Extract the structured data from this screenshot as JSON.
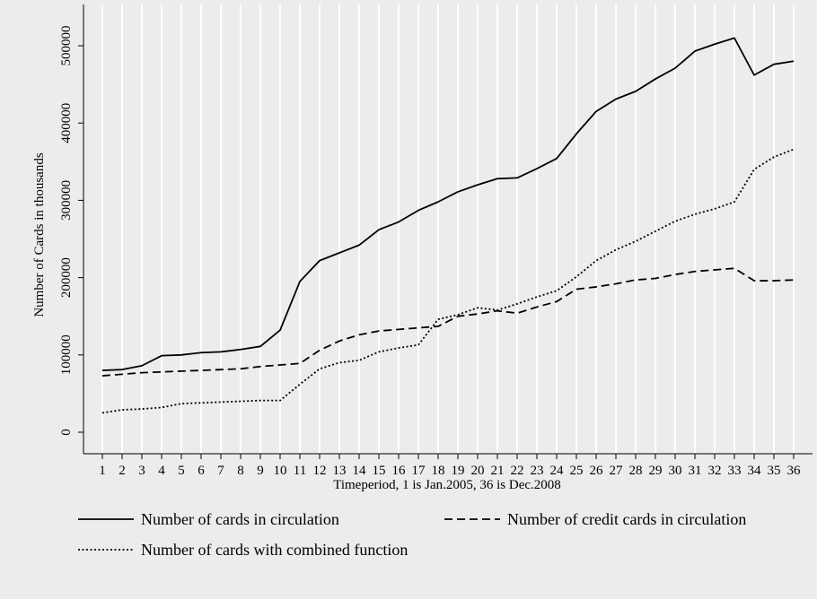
{
  "chart_data": {
    "type": "line",
    "xlabel": "Timeperiod, 1 is Jan.2005, 36 is Dec.2008",
    "ylabel": "Number of Cards in thousands",
    "x": [
      1,
      2,
      3,
      4,
      5,
      6,
      7,
      8,
      9,
      10,
      11,
      12,
      13,
      14,
      15,
      16,
      17,
      18,
      19,
      20,
      21,
      22,
      23,
      24,
      25,
      26,
      27,
      28,
      29,
      30,
      31,
      32,
      33,
      34,
      35,
      36
    ],
    "xticks": [
      "1",
      "2",
      "3",
      "4",
      "5",
      "6",
      "7",
      "8",
      "9",
      "10",
      "11",
      "12",
      "13",
      "14",
      "15",
      "16",
      "17",
      "18",
      "19",
      "20",
      "21",
      "22",
      "23",
      "24",
      "25",
      "26",
      "27",
      "28",
      "29",
      "30",
      "31",
      "32",
      "33",
      "34",
      "35",
      "36"
    ],
    "yticks": [
      "0",
      "100000",
      "200000",
      "300000",
      "400000",
      "500000"
    ],
    "xlim": [
      1,
      36
    ],
    "ylim": [
      0,
      500000
    ],
    "grid": "vertical",
    "legend_position": "bottom",
    "series": [
      {
        "name": "Number of cards in circulation",
        "style": "solid",
        "values": [
          80000,
          81000,
          86000,
          99000,
          100000,
          103000,
          104000,
          107000,
          111000,
          132000,
          195000,
          222000,
          232000,
          242000,
          262000,
          272000,
          287000,
          298000,
          311000,
          320000,
          328000,
          329000,
          341000,
          354000,
          386000,
          415000,
          431000,
          441000,
          457000,
          471000,
          493000,
          502000,
          510000,
          462000,
          476000,
          480000
        ]
      },
      {
        "name": "Number of credit cards in circulation",
        "style": "dashed",
        "values": [
          73000,
          75000,
          77000,
          78000,
          79000,
          80000,
          81000,
          82000,
          85000,
          87000,
          89000,
          106000,
          118000,
          126000,
          131000,
          133000,
          135000,
          137000,
          150000,
          153000,
          157000,
          154000,
          162000,
          169000,
          185000,
          188000,
          192000,
          197000,
          199000,
          204000,
          208000,
          210000,
          212000,
          196000,
          196000,
          197000
        ]
      },
      {
        "name": "Number of cards with combined function",
        "style": "dotted",
        "values": [
          25000,
          29000,
          30000,
          32000,
          37000,
          38000,
          39000,
          40000,
          41000,
          41000,
          62000,
          82000,
          90000,
          93000,
          104000,
          109000,
          113000,
          146000,
          152000,
          161000,
          158000,
          166000,
          175000,
          183000,
          201000,
          222000,
          236000,
          247000,
          260000,
          273000,
          282000,
          289000,
          298000,
          340000,
          356000,
          366000
        ]
      }
    ]
  }
}
